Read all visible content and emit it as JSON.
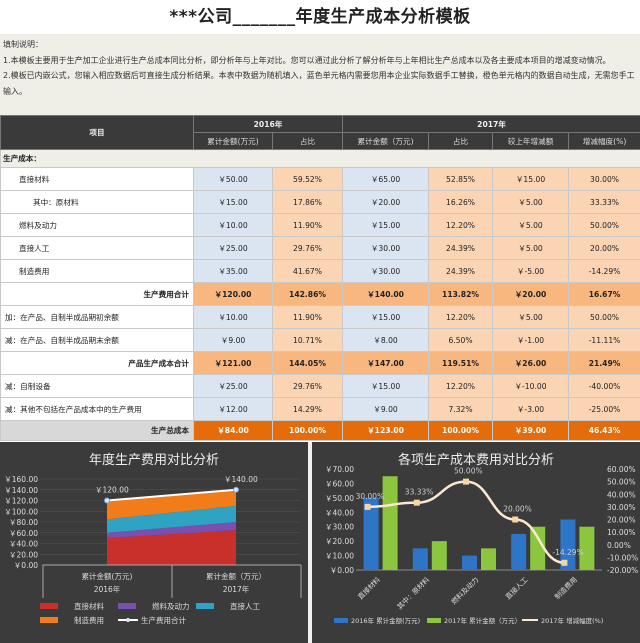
{
  "title": "***公司_______年度生产成本分析模板",
  "notes": {
    "heading": "填制说明：",
    "line1": "1.本模板主要用于生产加工企业进行生产总成本同比分析，即分析年与上年对比。您可以通过此分析了解分析年与上年相比生产总成本以及各主要成本项目的增减变动情况。",
    "line2": "2.模板已内嵌公式，您输入相应数据后可直接生成分析结果。本表中数据为随机填入，蓝色单元格内需要您用本企业实际数据手工替换，橙色单元格内的数据自动生成，无需您手工输入。"
  },
  "header": {
    "item": "项目",
    "y2016": "2016年",
    "y2017": "2017年",
    "cols": [
      "累计金额(万元)",
      "占比",
      "累计金额（万元)",
      "占比",
      "较上年增减额",
      "增减幅度(%)"
    ]
  },
  "section": "生产成本：",
  "rows": [
    {
      "label": "直接材料",
      "indent": 1,
      "type": "",
      "v": [
        "￥50.00",
        "59.52%",
        "￥65.00",
        "52.85%",
        "￥15.00",
        "30.00%"
      ]
    },
    {
      "label": "其中：原材料",
      "indent": 2,
      "type": "",
      "v": [
        "￥15.00",
        "17.86%",
        "￥20.00",
        "16.26%",
        "￥5.00",
        "33.33%"
      ]
    },
    {
      "label": "燃料及动力",
      "indent": 1,
      "type": "",
      "v": [
        "￥10.00",
        "11.90%",
        "￥15.00",
        "12.20%",
        "￥5.00",
        "50.00%"
      ]
    },
    {
      "label": "直接人工",
      "indent": 1,
      "type": "",
      "v": [
        "￥25.00",
        "29.76%",
        "￥30.00",
        "24.39%",
        "￥5.00",
        "20.00%"
      ]
    },
    {
      "label": "制造费用",
      "indent": 1,
      "type": "",
      "v": [
        "￥35.00",
        "41.67%",
        "￥30.00",
        "24.39%",
        "￥-5.00",
        "-14.29%"
      ]
    },
    {
      "label": "生产费用合计",
      "indent": 0,
      "type": "sum",
      "v": [
        "￥120.00",
        "142.86%",
        "￥140.00",
        "113.82%",
        "￥20.00",
        "16.67%"
      ]
    },
    {
      "label": "加：在产品、自制半成品期初余额",
      "indent": 0,
      "type": "",
      "v": [
        "￥10.00",
        "11.90%",
        "￥15.00",
        "12.20%",
        "￥5.00",
        "50.00%"
      ]
    },
    {
      "label": "减：在产品、自制半成品期末余额",
      "indent": 0,
      "type": "",
      "v": [
        "￥9.00",
        "10.71%",
        "￥8.00",
        "6.50%",
        "￥-1.00",
        "-11.11%"
      ]
    },
    {
      "label": "产品生产成本合计",
      "indent": 0,
      "type": "sum",
      "v": [
        "￥121.00",
        "144.05%",
        "￥147.00",
        "119.51%",
        "￥26.00",
        "21.49%"
      ]
    },
    {
      "label": "减：自制设备",
      "indent": 0,
      "type": "",
      "v": [
        "￥25.00",
        "29.76%",
        "￥15.00",
        "12.20%",
        "￥-10.00",
        "-40.00%"
      ]
    },
    {
      "label": "减：其他不包括在产品成本中的生产费用",
      "indent": 0,
      "type": "",
      "v": [
        "￥12.00",
        "14.29%",
        "￥9.00",
        "7.32%",
        "￥-3.00",
        "-25.00%"
      ]
    },
    {
      "label": "生产总成本",
      "indent": 0,
      "type": "grand",
      "v": [
        "￥84.00",
        "100.00%",
        "￥123.00",
        "100.00%",
        "￥39.00",
        "46.43%"
      ]
    }
  ],
  "chart_data": [
    {
      "type": "area",
      "title": "年度生产费用对比分析",
      "categories": [
        [
          "累计金额(万元)",
          "2016年"
        ],
        [
          "累计金额（万元）",
          "2017年"
        ]
      ],
      "yticks": [
        "￥0.00",
        "￥20.00",
        "￥40.00",
        "￥60.00",
        "￥80.00",
        "￥100.00",
        "￥120.00",
        "￥140.00",
        "￥160.00"
      ],
      "ylim": [
        0,
        160
      ],
      "series": [
        {
          "name": "直接材料",
          "values": [
            50,
            65
          ],
          "color": "#c9302c"
        },
        {
          "name": "燃料及动力",
          "values": [
            10,
            15
          ],
          "color": "#7b4fb0"
        },
        {
          "name": "直接人工",
          "values": [
            25,
            30
          ],
          "color": "#2ea3c4"
        },
        {
          "name": "制造费用",
          "values": [
            35,
            30
          ],
          "color": "#f07d1a"
        }
      ],
      "line": {
        "name": "生产费用合计",
        "values": [
          120,
          140
        ],
        "labels": [
          "￥120.00",
          "￥140.00"
        ],
        "color": "#ffffff"
      }
    },
    {
      "type": "bar",
      "title": "各项生产成本费用对比分析",
      "categories": [
        "直接材料",
        "其中：原材料",
        "燃料及动力",
        "直接人工",
        "制造费用"
      ],
      "yticks": [
        "￥0.00",
        "￥10.00",
        "￥20.00",
        "￥30.00",
        "￥40.00",
        "￥50.00",
        "￥60.00",
        "￥70.00"
      ],
      "ylim": [
        0,
        70
      ],
      "y2ticks": [
        "-20.00%",
        "-10.00%",
        "0.00%",
        "10.00%",
        "20.00%",
        "30.00%",
        "40.00%",
        "50.00%",
        "60.00%"
      ],
      "y2lim": [
        -20,
        60
      ],
      "series": [
        {
          "name": "2016年 累计金额(万元)",
          "values": [
            50,
            15,
            10,
            25,
            35
          ],
          "color": "#2e75c8"
        },
        {
          "name": "2017年 累计金额（万元）",
          "values": [
            65,
            20,
            15,
            30,
            30
          ],
          "color": "#8cc63f"
        }
      ],
      "line": {
        "name": "2017年 增减幅度(%)",
        "values": [
          30,
          33.33,
          50,
          20,
          -14.29
        ],
        "labels": [
          "30.00%",
          "33.33%",
          "50.00%",
          "20.00%",
          "-14.29%"
        ],
        "color": "#fbe8d0"
      }
    }
  ]
}
